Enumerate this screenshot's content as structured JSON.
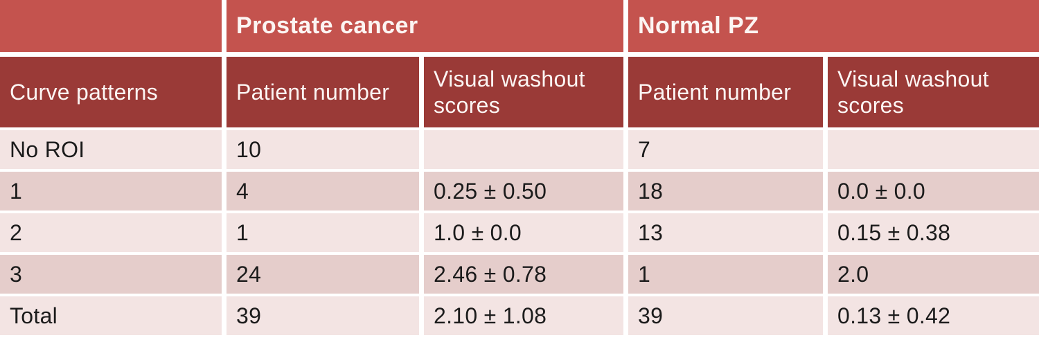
{
  "chart_data": {
    "type": "table",
    "column_groups": [
      {
        "label": "",
        "span": 1
      },
      {
        "label": "Prostate cancer",
        "span": 2
      },
      {
        "label": "Normal PZ",
        "span": 2
      }
    ],
    "columns": [
      "Curve patterns",
      "Patient number",
      "Visual washout scores",
      "Patient number",
      "Visual washout scores"
    ],
    "rows": [
      {
        "cells": [
          "No ROI",
          "10",
          "",
          "7",
          ""
        ]
      },
      {
        "cells": [
          "1",
          "4",
          "0.25 ± 0.50",
          "18",
          "0.0 ± 0.0"
        ]
      },
      {
        "cells": [
          "2",
          "1",
          "1.0 ± 0.0",
          "13",
          "0.15 ± 0.38"
        ]
      },
      {
        "cells": [
          "3",
          "24",
          "2.46 ± 0.78",
          "1",
          "2.0"
        ]
      },
      {
        "cells": [
          "Total",
          "39",
          "2.10 ± 1.08",
          "39",
          "0.13 ± 0.42"
        ]
      }
    ]
  },
  "colors": {
    "header_primary": "#C4534E",
    "header_secondary": "#9A3A37",
    "row_light": "#F3E4E3",
    "row_band": "#E5CDCB",
    "header_text": "#FCF5F3",
    "body_text": "#1B1B1B",
    "grid_gap": "#FFFFFF"
  }
}
